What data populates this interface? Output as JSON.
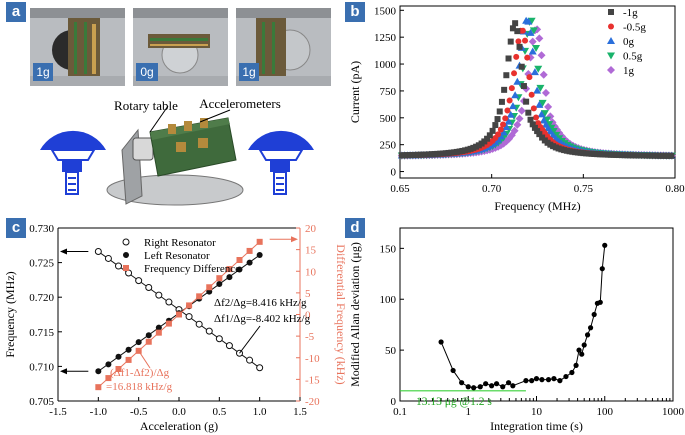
{
  "panels": {
    "a": {
      "label": "a",
      "photo_labels": [
        "1g",
        "0g",
        "1g"
      ],
      "rotary_table_label": "Rotary table",
      "accelerometers_label": "Accelerometers"
    },
    "b": {
      "label": "b"
    },
    "c": {
      "label": "c",
      "annotation_f2": "Δf2/Δg=8.416 kHz/g",
      "annotation_f1": "Δf1/Δg=-8.402 kHz/g",
      "annotation_diff_line1": "(Δf1-Δf2)/Δg",
      "annotation_diff_line2": "=16.818 kHz/g"
    },
    "d": {
      "label": "d",
      "annotation": "13.13 μg @1.2 s"
    }
  },
  "colors": {
    "panel_label_bg": "#3a6fb0",
    "red_axis": "#e8735c",
    "green_line": "#3ad13a",
    "blue_mount": "#1f3fd6"
  },
  "chart_data": [
    {
      "id": "b",
      "type": "scatter",
      "title": "",
      "xlabel": "Frequency (MHz)",
      "ylabel": "Current (pA)",
      "xlim": [
        0.65,
        0.8
      ],
      "ylim": [
        -60,
        1540
      ],
      "xticks": [
        "0.65",
        "0.70",
        "0.75",
        "0.80"
      ],
      "xtick_values": [
        0.65,
        0.7,
        0.75,
        0.8
      ],
      "yticks": [
        "0",
        "250",
        "500",
        "750",
        "1000",
        "1250",
        "1500"
      ],
      "ytick_values": [
        0,
        250,
        500,
        750,
        1000,
        1250,
        1500
      ],
      "legend_position": "top-right",
      "series": [
        {
          "name": "-1g",
          "color": "#444444",
          "marker": "square",
          "f0": 0.7128,
          "peak": 1380
        },
        {
          "name": "-0.5g",
          "color": "#e8312f",
          "marker": "circle",
          "f0": 0.7166,
          "peak": 1330
        },
        {
          "name": "0g",
          "color": "#2a6fdb",
          "marker": "triangle-up",
          "f0": 0.7195,
          "peak": 1420
        },
        {
          "name": "0.5g",
          "color": "#19b36b",
          "marker": "triangle-down",
          "f0": 0.7215,
          "peak": 1420
        },
        {
          "name": "1g",
          "color": "#b06ad6",
          "marker": "diamond",
          "f0": 0.7245,
          "peak": 1340
        }
      ]
    },
    {
      "id": "c",
      "type": "line",
      "title": "",
      "xlabel": "Acceleration (g)",
      "ylabel": "Frequency (MHz)",
      "y2label": "Differential Frequency (kHz)",
      "xlim": [
        -1.5,
        1.5
      ],
      "ylim": [
        0.705,
        0.73
      ],
      "y2lim": [
        -20,
        20
      ],
      "xticks": [
        "-1.5",
        "-1.0",
        "-0.5",
        "0.0",
        "0.5",
        "1.0",
        "1.5"
      ],
      "xtick_values": [
        -1.5,
        -1.0,
        -0.5,
        0.0,
        0.5,
        1.0,
        1.5
      ],
      "yticks": [
        "0.705",
        "0.710",
        "0.715",
        "0.720",
        "0.725",
        "0.730"
      ],
      "ytick_values": [
        0.705,
        0.71,
        0.715,
        0.72,
        0.725,
        0.73
      ],
      "y2ticks": [
        "-20",
        "-15",
        "-10",
        "-5",
        "0",
        "5",
        "10",
        "15",
        "20"
      ],
      "y2tick_values": [
        -20,
        -15,
        -10,
        -5,
        0,
        5,
        10,
        15,
        20
      ],
      "legend_position": "top-left",
      "x": [
        -1.0,
        -0.875,
        -0.75,
        -0.625,
        -0.5,
        -0.375,
        -0.25,
        -0.125,
        0.0,
        0.125,
        0.25,
        0.375,
        0.5,
        0.625,
        0.75,
        0.875,
        1.0
      ],
      "series": [
        {
          "name": "Right Resonator",
          "axis": "left",
          "marker": "open-circle",
          "color": "#111111",
          "values": [
            0.7266,
            0.7256,
            0.7245,
            0.7235,
            0.7224,
            0.7214,
            0.7203,
            0.7193,
            0.7182,
            0.7172,
            0.7161,
            0.7151,
            0.714,
            0.713,
            0.7119,
            0.7109,
            0.7098
          ]
        },
        {
          "name": "Left Resonator",
          "axis": "left",
          "marker": "filled-circle",
          "color": "#111111",
          "values": [
            0.7093,
            0.7103,
            0.7114,
            0.7124,
            0.7135,
            0.7145,
            0.7156,
            0.7166,
            0.7177,
            0.7187,
            0.7198,
            0.7208,
            0.7219,
            0.7229,
            0.724,
            0.725,
            0.7261
          ]
        },
        {
          "name": "Frequency Difference",
          "axis": "right",
          "marker": "square",
          "color": "#e8735c",
          "values": [
            -16.8,
            -14.7,
            -12.6,
            -10.5,
            -8.4,
            -6.3,
            -4.2,
            -2.1,
            0.0,
            2.1,
            4.2,
            6.3,
            8.4,
            10.5,
            12.6,
            14.7,
            16.8
          ]
        }
      ]
    },
    {
      "id": "d",
      "type": "line",
      "title": "",
      "xlabel": "Integration time (s)",
      "ylabel": "Modified Allan deviation (μg)",
      "xscale": "log",
      "xlim": [
        0.1,
        1000
      ],
      "ylim": [
        0,
        170
      ],
      "xticks": [
        "0.1",
        "1",
        "10",
        "100",
        "1000"
      ],
      "xtick_values": [
        0.1,
        1,
        10,
        100,
        1000
      ],
      "yticks": [
        "0",
        "50",
        "100",
        "150"
      ],
      "ytick_values": [
        0,
        50,
        100,
        150
      ],
      "reference_line": 10,
      "x": [
        0.4,
        0.6,
        0.8,
        1.0,
        1.2,
        1.5,
        1.8,
        2.2,
        2.6,
        3.2,
        3.9,
        4.5,
        7,
        8.5,
        10,
        12,
        15,
        18,
        22,
        27,
        33,
        38,
        42,
        46,
        50,
        56,
        62,
        70,
        78,
        86,
        92,
        100
      ],
      "values": [
        58,
        30,
        18,
        14,
        13,
        14,
        17,
        15,
        17,
        14,
        18,
        15,
        20,
        20,
        22,
        21,
        21,
        22,
        20,
        24,
        28,
        35,
        50,
        46,
        55,
        65,
        72,
        85,
        96,
        97,
        130,
        153
      ]
    }
  ]
}
